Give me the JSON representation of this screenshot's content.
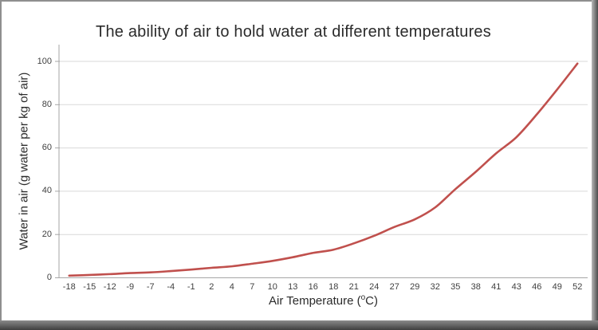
{
  "colors": {
    "line": "#C0504D",
    "gridline": "#D9D9D9",
    "axis": "#A6A6A6",
    "tick_text": "#3F3F3F",
    "title_text": "#2B2B2B",
    "frame_light": "#8F8F8F",
    "frame_dark": "#4C4C4C"
  },
  "chart_data": {
    "type": "line",
    "title": "The ability of air to hold water at different temperatures",
    "xlabel_parts": {
      "pre": "Air Temperature (",
      "sup": "o",
      "post": "C)"
    },
    "xlabel": "Air Temperature (°C)",
    "ylabel": "Water in air (g water per kg of air)",
    "categories": [
      -18,
      -15,
      -12,
      -9,
      -7,
      -4,
      -1,
      2,
      4,
      7,
      10,
      13,
      16,
      18,
      21,
      24,
      27,
      29,
      32,
      35,
      38,
      41,
      43,
      46,
      49,
      52
    ],
    "series": [
      {
        "name": "Water in air (g water per kg of air)",
        "values": [
          1.0,
          1.3,
          1.7,
          2.2,
          2.5,
          3.1,
          3.8,
          4.6,
          5.3,
          6.5,
          7.8,
          9.5,
          11.5,
          13.0,
          15.9,
          19.4,
          23.5,
          27.0,
          32.5,
          41.0,
          49.0,
          57.5,
          65.0,
          75.5,
          87.0,
          99.0
        ]
      }
    ],
    "yticks": [
      0,
      20,
      40,
      60,
      80,
      100
    ],
    "ylim": [
      0,
      100
    ],
    "grid": "horizontal",
    "legend": "none"
  }
}
